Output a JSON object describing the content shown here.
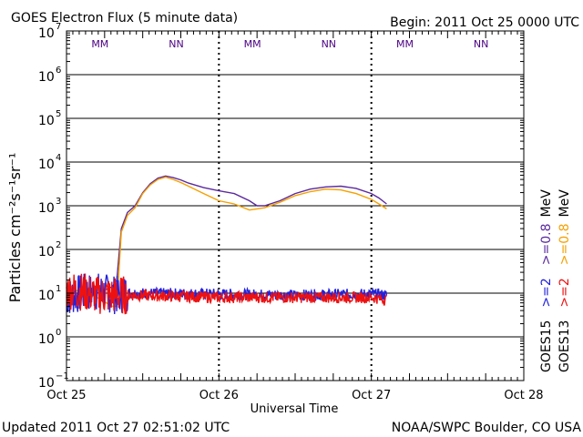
{
  "chart_data": {
    "type": "line",
    "title": "GOES Electron Flux (5 minute data)",
    "begin_label": "Begin: 2011 Oct 25 0000 UTC",
    "xlabel": "Universal Time",
    "ylabel": "Particles cm⁻²s⁻¹sr⁻¹",
    "xlim_days": [
      0,
      3
    ],
    "ylim_log10": [
      -1,
      7
    ],
    "x_ticks": [
      {
        "day": 0,
        "label": "Oct 25"
      },
      {
        "day": 1,
        "label": "Oct 26"
      },
      {
        "day": 2,
        "label": "Oct 27"
      },
      {
        "day": 3,
        "label": "Oct 28"
      }
    ],
    "y_ticks": [
      {
        "exp": 7,
        "label": "7"
      },
      {
        "exp": 6,
        "label": "6"
      },
      {
        "exp": 5,
        "label": "5"
      },
      {
        "exp": 4,
        "label": "4"
      },
      {
        "exp": 3,
        "label": "3"
      },
      {
        "exp": 2,
        "label": "2"
      },
      {
        "exp": 1,
        "label": "1"
      },
      {
        "exp": 0,
        "label": "0"
      },
      {
        "exp": -1,
        "label": "−1"
      }
    ],
    "y_base": "10",
    "threshold": 1000,
    "markers": [
      {
        "day": 0.22,
        "text": "MM",
        "color": "#4b0082"
      },
      {
        "day": 0.72,
        "text": "NN",
        "color": "#4b0082"
      },
      {
        "day": 1.22,
        "text": "MM",
        "color": "#4b0082"
      },
      {
        "day": 1.72,
        "text": "NN",
        "color": "#4b0082"
      },
      {
        "day": 2.22,
        "text": "MM",
        "color": "#4b0082"
      },
      {
        "day": 2.72,
        "text": "NN",
        "color": "#4b0082"
      }
    ],
    "series": [
      {
        "name": "GOES15 >=0.8 MeV",
        "color": "#5b2a9e",
        "noisy": false,
        "x": [
          0,
          0.1,
          0.2,
          0.3,
          0.33,
          0.36,
          0.4,
          0.45,
          0.5,
          0.55,
          0.6,
          0.65,
          0.7,
          0.75,
          0.8,
          0.9,
          1.0,
          1.1,
          1.2,
          1.25,
          1.3,
          1.4,
          1.5,
          1.6,
          1.7,
          1.8,
          1.9,
          2.0,
          2.05,
          2.1
        ],
        "y": [
          10,
          12,
          10,
          14,
          20,
          300,
          700,
          1000,
          2000,
          3200,
          4300,
          4800,
          4400,
          3900,
          3300,
          2600,
          2200,
          1900,
          1300,
          1000,
          1000,
          1300,
          1900,
          2400,
          2700,
          2800,
          2500,
          1900,
          1500,
          1100
        ]
      },
      {
        "name": "GOES13 >=0.8 MeV",
        "color": "#f5a000",
        "noisy": false,
        "x": [
          0,
          0.1,
          0.2,
          0.3,
          0.33,
          0.36,
          0.4,
          0.45,
          0.5,
          0.55,
          0.6,
          0.65,
          0.7,
          0.75,
          0.8,
          0.9,
          1.0,
          1.1,
          1.2,
          1.25,
          1.3,
          1.4,
          1.5,
          1.6,
          1.7,
          1.8,
          1.9,
          2.0,
          2.05,
          2.1
        ],
        "y": [
          12,
          11,
          8,
          5,
          5,
          250,
          600,
          900,
          1900,
          3000,
          4000,
          4500,
          4000,
          3400,
          2800,
          1900,
          1300,
          1100,
          800,
          850,
          900,
          1200,
          1700,
          2100,
          2400,
          2300,
          1900,
          1400,
          1100,
          850
        ]
      },
      {
        "name": "GOES15 >=2 MeV",
        "color": "#2222dd",
        "noisy": true,
        "x": [
          0,
          0.1,
          0.2,
          0.33,
          0.4,
          1.0,
          1.5,
          2.0,
          2.1
        ],
        "y": [
          8,
          10,
          11,
          9,
          10,
          9.5,
          9,
          9.5,
          9
        ]
      },
      {
        "name": "GOES13 >=2 MeV",
        "color": "#ee1111",
        "noisy": true,
        "x": [
          0,
          0.1,
          0.2,
          0.33,
          0.4,
          1.0,
          1.5,
          2.0,
          2.1
        ],
        "y": [
          12,
          11,
          9,
          9,
          9,
          8,
          8,
          8,
          7
        ]
      }
    ],
    "legend": [
      {
        "sat": "GOES15",
        "channels": [
          {
            "text": ">=2",
            "color": "#2222dd"
          },
          {
            "text": ">=0.8",
            "color": "#5b2a9e"
          }
        ],
        "unit": "MeV"
      },
      {
        "sat": "GOES13",
        "channels": [
          {
            "text": ">=2",
            "color": "#ee1111"
          },
          {
            "text": ">=0.8",
            "color": "#f5a000"
          }
        ],
        "unit": "MeV"
      }
    ]
  },
  "footer": {
    "updated": "Updated 2011 Oct 27 02:51:02 UTC",
    "credit": "NOAA/SWPC Boulder, CO USA"
  }
}
